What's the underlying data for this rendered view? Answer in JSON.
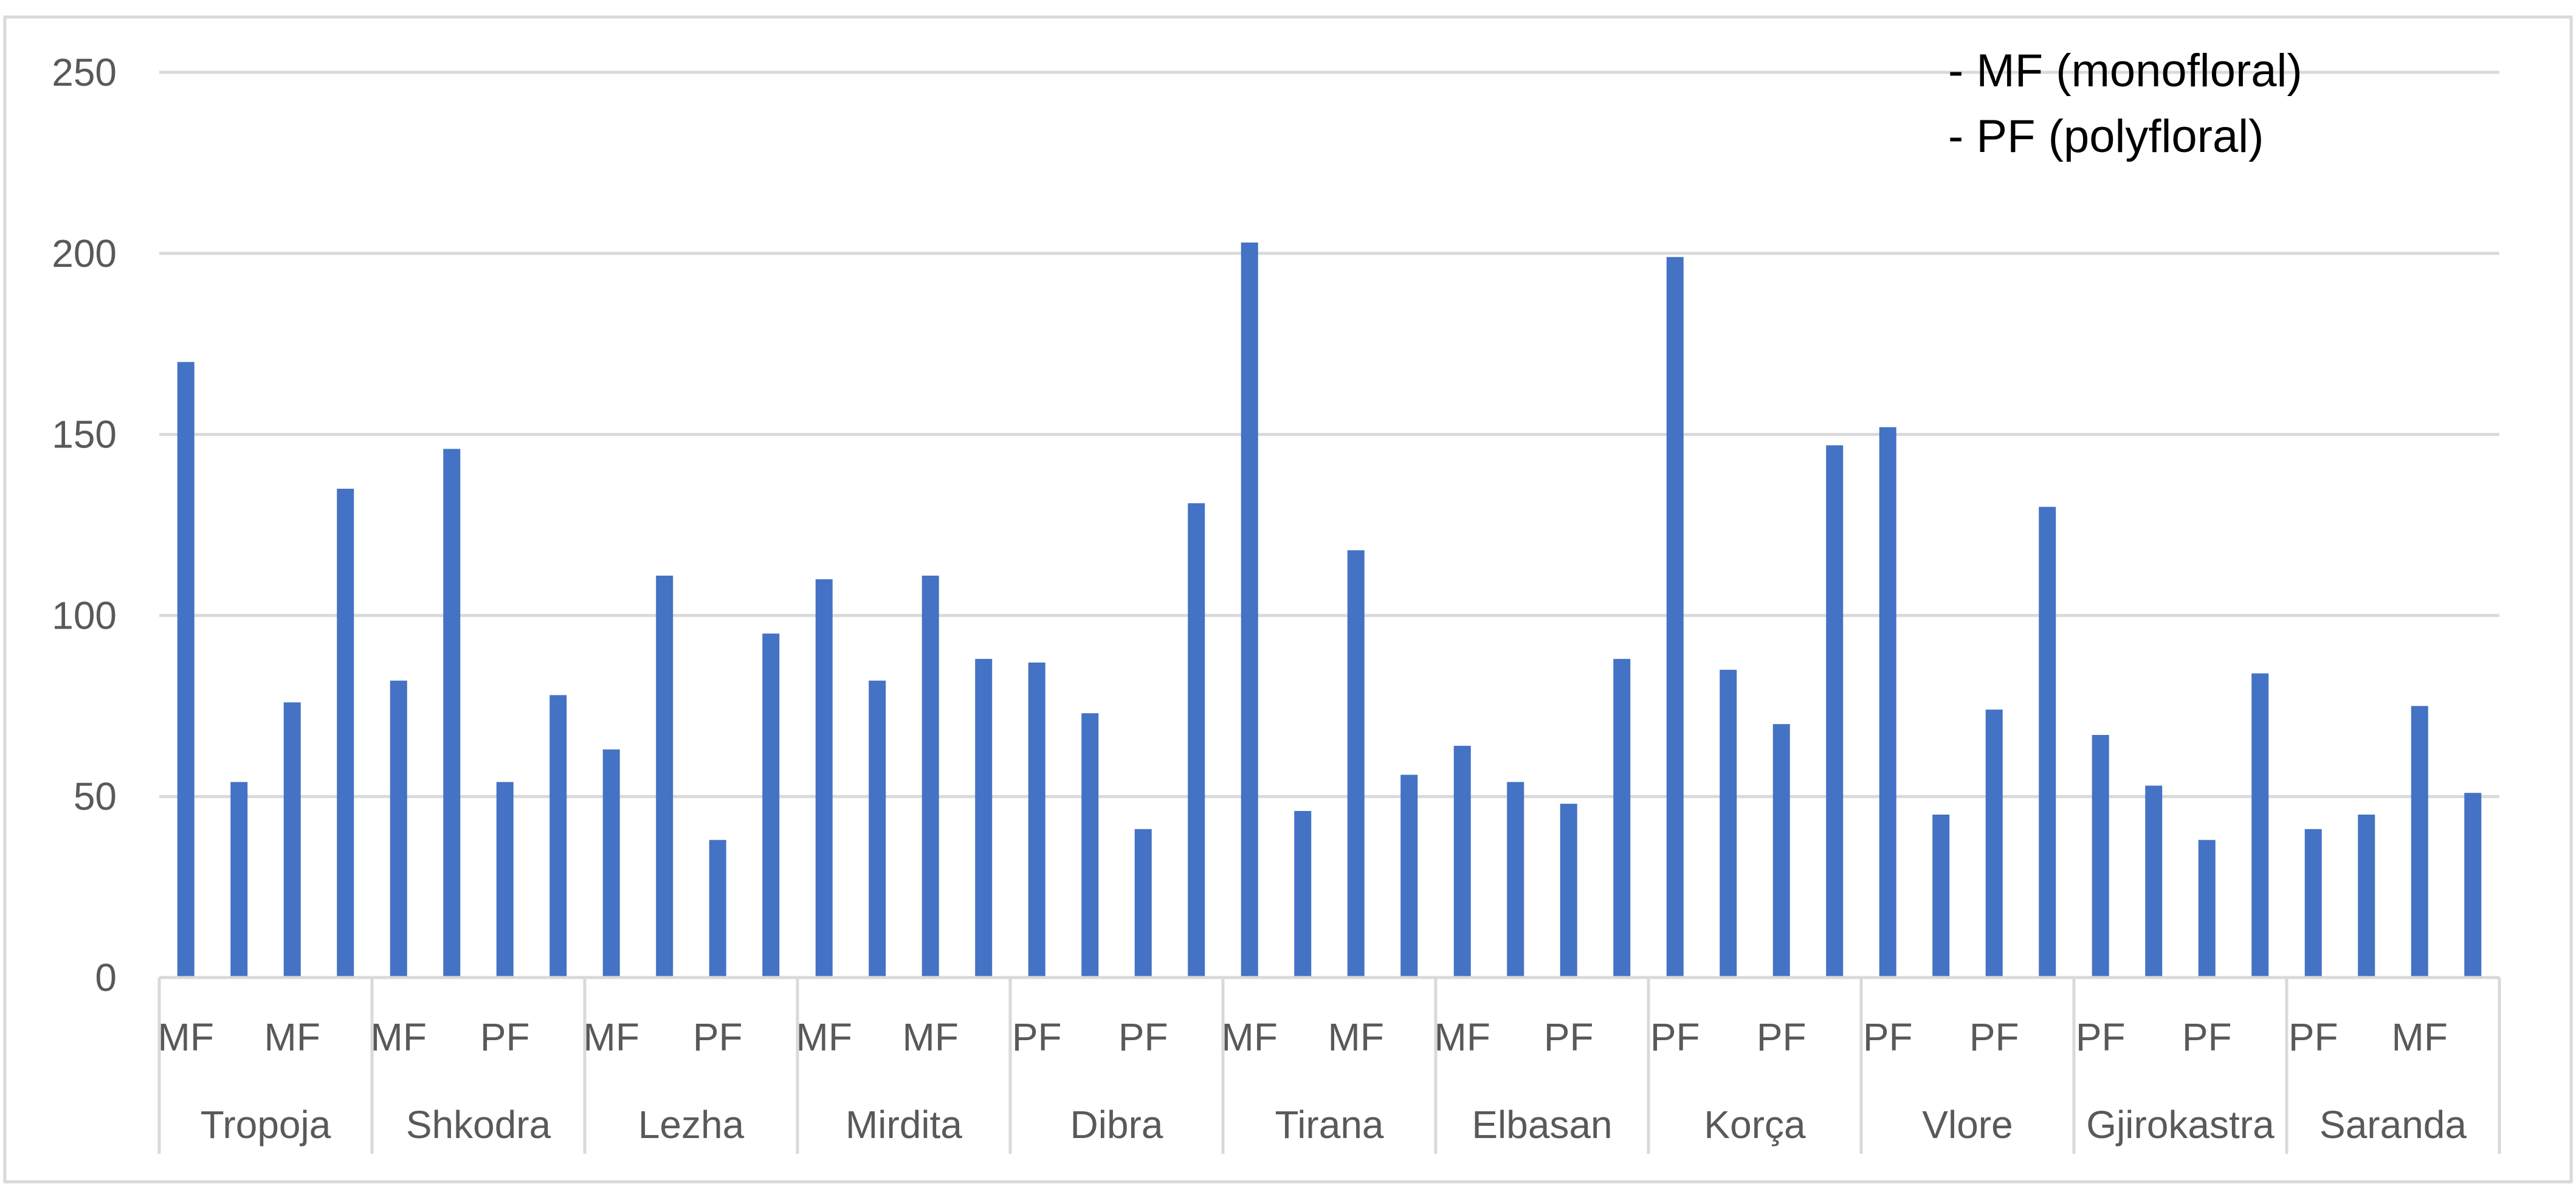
{
  "chart_data": {
    "type": "bar",
    "title": "",
    "xlabel": "",
    "ylabel": "",
    "ylim": [
      0,
      250
    ],
    "yticks": [
      "0",
      "50",
      "100",
      "150",
      "200",
      "250"
    ],
    "grid": true,
    "legend_position": "top-right",
    "legend": [
      "- MF (monofloral)",
      "- PF (polyfloral)"
    ],
    "colors": {
      "bar": "#4472C4",
      "grid": "#D9D9D9",
      "axis": "#D9D9D9"
    },
    "groups": [
      {
        "name": "Tropoja",
        "labels": [
          "MF",
          "MF"
        ],
        "values": [
          170,
          54,
          76,
          135
        ]
      },
      {
        "name": "Shkodra",
        "labels": [
          "MF",
          "PF"
        ],
        "values": [
          82,
          146,
          54,
          78
        ]
      },
      {
        "name": "Lezha",
        "labels": [
          "MF",
          "PF"
        ],
        "values": [
          63,
          111,
          38,
          95
        ]
      },
      {
        "name": "Mirdita",
        "labels": [
          "MF",
          "MF"
        ],
        "values": [
          110,
          82,
          111,
          88
        ]
      },
      {
        "name": "Dibra",
        "labels": [
          "PF",
          "PF"
        ],
        "values": [
          87,
          73,
          41,
          131
        ]
      },
      {
        "name": "Tirana",
        "labels": [
          "MF",
          "MF"
        ],
        "values": [
          203,
          46,
          118,
          56
        ]
      },
      {
        "name": "Elbasan",
        "labels": [
          "MF",
          "PF"
        ],
        "values": [
          64,
          54,
          48,
          88
        ]
      },
      {
        "name": "Korça",
        "labels": [
          "PF",
          "PF"
        ],
        "values": [
          199,
          85,
          70,
          147
        ]
      },
      {
        "name": "Vlore",
        "labels": [
          "PF",
          "PF"
        ],
        "values": [
          152,
          45,
          74,
          130
        ]
      },
      {
        "name": "Gjirokastra",
        "labels": [
          "PF",
          "PF"
        ],
        "values": [
          67,
          53,
          38,
          84
        ]
      },
      {
        "name": "Saranda",
        "labels": [
          "PF",
          "MF"
        ],
        "values": [
          41,
          45,
          75,
          51
        ]
      }
    ]
  }
}
